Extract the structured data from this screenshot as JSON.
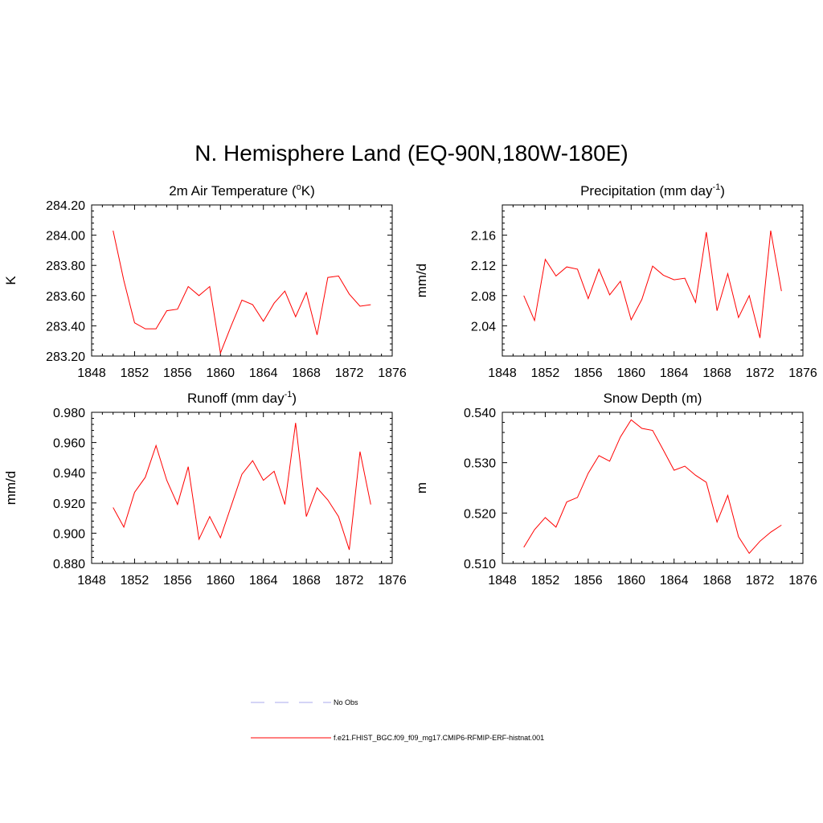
{
  "figure": {
    "title": "N. Hemisphere Land (EQ-90N,180W-180E)"
  },
  "chart_data": [
    {
      "type": "line",
      "title": "2m Air Temperature (°K)",
      "title_parts": [
        "2m Air Temperature (",
        "o",
        "K)"
      ],
      "xlabel": "",
      "ylabel": "K",
      "xlim": [
        1848,
        1876
      ],
      "ylim": [
        283.2,
        284.2
      ],
      "xticks": [
        "1848",
        "1852",
        "1856",
        "1860",
        "1864",
        "1868",
        "1872",
        "1876"
      ],
      "yticks": [
        "283.20",
        "283.40",
        "283.60",
        "283.80",
        "284.00",
        "284.20"
      ],
      "x": [
        1850,
        1851,
        1852,
        1853,
        1854,
        1855,
        1856,
        1857,
        1858,
        1859,
        1860,
        1861,
        1862,
        1863,
        1864,
        1865,
        1866,
        1867,
        1868,
        1869,
        1870,
        1871,
        1872,
        1873,
        1874
      ],
      "series": [
        {
          "name": "f.e21.FHIST_BGC.f09_f09_mg17.CMIP6-RFMIP-ERF-histnat.001",
          "color": "#ff0000",
          "values": [
            284.03,
            283.7,
            283.42,
            283.38,
            283.38,
            283.5,
            283.51,
            283.66,
            283.6,
            283.66,
            283.22,
            283.4,
            283.57,
            283.54,
            283.43,
            283.55,
            283.63,
            283.46,
            283.62,
            283.34,
            283.72,
            283.73,
            283.61,
            283.53,
            283.54
          ]
        }
      ]
    },
    {
      "type": "line",
      "title": "Precipitation (mm day-1)",
      "title_parts": [
        "Precipitation (mm day",
        "-1",
        ")"
      ],
      "xlabel": "",
      "ylabel": "mm/d",
      "xlim": [
        1848,
        1876
      ],
      "ylim": [
        2.0,
        2.2
      ],
      "xticks": [
        "1848",
        "1852",
        "1856",
        "1860",
        "1864",
        "1868",
        "1872",
        "1876"
      ],
      "yticks": [
        "2.04",
        "2.08",
        "2.12",
        "2.16"
      ],
      "x": [
        1850,
        1851,
        1852,
        1853,
        1854,
        1855,
        1856,
        1857,
        1858,
        1859,
        1860,
        1861,
        1862,
        1863,
        1864,
        1865,
        1866,
        1867,
        1868,
        1869,
        1870,
        1871,
        1872,
        1873,
        1874
      ],
      "series": [
        {
          "name": "f.e21.FHIST_BGC.f09_f09_mg17.CMIP6-RFMIP-ERF-histnat.001",
          "color": "#ff0000",
          "values": [
            2.08,
            2.047,
            2.128,
            2.106,
            2.118,
            2.115,
            2.076,
            2.115,
            2.081,
            2.099,
            2.048,
            2.075,
            2.119,
            2.107,
            2.101,
            2.103,
            2.071,
            2.164,
            2.06,
            2.109,
            2.051,
            2.08,
            2.024,
            2.166,
            2.086
          ]
        }
      ]
    },
    {
      "type": "line",
      "title": "Runoff (mm day-1)",
      "title_parts": [
        "Runoff (mm day",
        "-1",
        ")"
      ],
      "xlabel": "",
      "ylabel": "mm/d",
      "xlim": [
        1848,
        1876
      ],
      "ylim": [
        0.88,
        0.98
      ],
      "xticks": [
        "1848",
        "1852",
        "1856",
        "1860",
        "1864",
        "1868",
        "1872",
        "1876"
      ],
      "yticks": [
        "0.880",
        "0.900",
        "0.920",
        "0.940",
        "0.960",
        "0.980"
      ],
      "x": [
        1850,
        1851,
        1852,
        1853,
        1854,
        1855,
        1856,
        1857,
        1858,
        1859,
        1860,
        1861,
        1862,
        1863,
        1864,
        1865,
        1866,
        1867,
        1868,
        1869,
        1870,
        1871,
        1872,
        1873,
        1874
      ],
      "series": [
        {
          "name": "f.e21.FHIST_BGC.f09_f09_mg17.CMIP6-RFMIP-ERF-histnat.001",
          "color": "#ff0000",
          "values": [
            0.917,
            0.904,
            0.927,
            0.937,
            0.958,
            0.935,
            0.919,
            0.944,
            0.896,
            0.911,
            0.897,
            0.918,
            0.939,
            0.948,
            0.935,
            0.941,
            0.919,
            0.973,
            0.911,
            0.93,
            0.922,
            0.911,
            0.889,
            0.954,
            0.919
          ]
        }
      ]
    },
    {
      "type": "line",
      "title": "Snow Depth (m)",
      "title_parts": [
        "Snow Depth (m)",
        "",
        ""
      ],
      "xlabel": "",
      "ylabel": "m",
      "xlim": [
        1848,
        1876
      ],
      "ylim": [
        0.51,
        0.54
      ],
      "xticks": [
        "1848",
        "1852",
        "1856",
        "1860",
        "1864",
        "1868",
        "1872",
        "1876"
      ],
      "yticks": [
        "0.510",
        "0.520",
        "0.530",
        "0.540"
      ],
      "x": [
        1850,
        1851,
        1852,
        1853,
        1854,
        1855,
        1856,
        1857,
        1858,
        1859,
        1860,
        1861,
        1862,
        1863,
        1864,
        1865,
        1866,
        1867,
        1868,
        1869,
        1870,
        1871,
        1872,
        1873,
        1874
      ],
      "series": [
        {
          "name": "f.e21.FHIST_BGC.f09_f09_mg17.CMIP6-RFMIP-ERF-histnat.001",
          "color": "#ff0000",
          "values": [
            0.5132,
            0.5167,
            0.5191,
            0.5172,
            0.5222,
            0.5231,
            0.5279,
            0.5314,
            0.5303,
            0.5351,
            0.5385,
            0.5368,
            0.5364,
            0.5325,
            0.5285,
            0.5293,
            0.5275,
            0.5261,
            0.5182,
            0.5235,
            0.5153,
            0.512,
            0.5144,
            0.5162,
            0.5176
          ]
        }
      ]
    }
  ],
  "legend": [
    {
      "label": "No Obs",
      "color": "#aaaaee",
      "style": "dashed"
    },
    {
      "label": "f.e21.FHIST_BGC.f09_f09_mg17.CMIP6-RFMIP-ERF-histnat.001",
      "color": "#ff0000",
      "style": "solid"
    }
  ]
}
